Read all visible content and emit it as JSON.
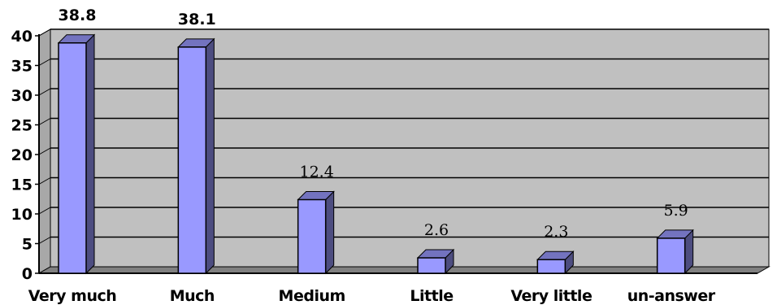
{
  "chart_data": {
    "type": "bar",
    "categories": [
      "Very much",
      "Much",
      "Medium",
      "Little",
      "Very little",
      "un-answer"
    ],
    "values": [
      38.8,
      38.1,
      12.4,
      2.6,
      2.3,
      5.9
    ],
    "data_labels": [
      "38.8",
      "38.1",
      "12.4",
      "2.6",
      "2.3",
      "5.9"
    ],
    "title": "",
    "xlabel": "",
    "ylabel": "",
    "ylim": [
      0,
      40
    ],
    "yticks": [
      "0",
      "5",
      "10",
      "15",
      "20",
      "25",
      "30",
      "35",
      "40"
    ],
    "grid": true,
    "legend": "none",
    "colors": {
      "plot_background": "#c0c0c0",
      "bar_front": "#9999ff",
      "bar_side": "#4d4d80",
      "bar_top": "#7373bf",
      "floor": "#808080"
    }
  }
}
